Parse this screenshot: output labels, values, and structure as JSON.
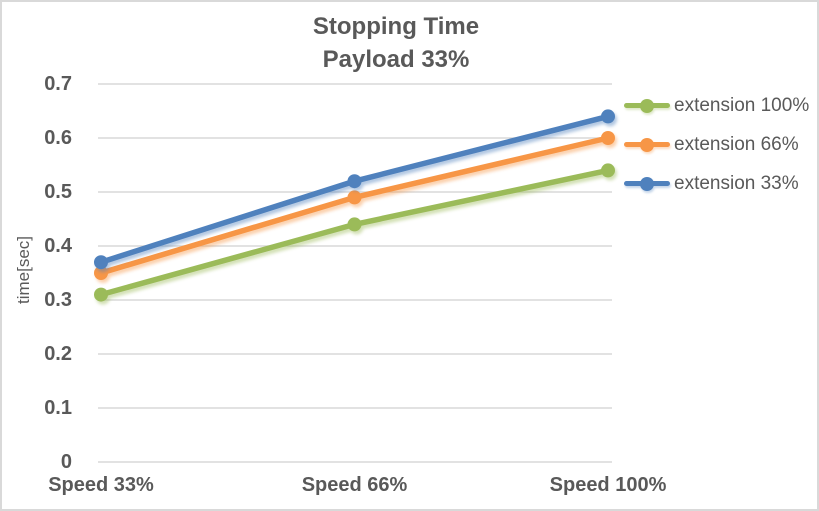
{
  "chart_data": {
    "type": "line",
    "title": "Stopping Time",
    "subtitle": "Payload 33%",
    "ylabel": "time[sec]",
    "xlabel": "",
    "categories": [
      "Speed 33%",
      "Speed 66%",
      "Speed 100%"
    ],
    "series": [
      {
        "name": "extension 100%",
        "color": "#9BBB59",
        "values": [
          0.31,
          0.44,
          0.54
        ]
      },
      {
        "name": "extension 66%",
        "color": "#F79646",
        "values": [
          0.35,
          0.49,
          0.6
        ]
      },
      {
        "name": "extension 33%",
        "color": "#4F81BD",
        "values": [
          0.37,
          0.52,
          0.64
        ]
      }
    ],
    "ylim": [
      0,
      0.7
    ],
    "yticks": [
      "0",
      "0.1",
      "0.2",
      "0.3",
      "0.4",
      "0.5",
      "0.6",
      "0.7"
    ],
    "grid": true,
    "legend_position": "right",
    "marker": "circle",
    "text_color": "#595959",
    "grid_color": "#D9D9D9",
    "border_color": "#D9D9D9",
    "background_color": "#FFFFFF"
  }
}
